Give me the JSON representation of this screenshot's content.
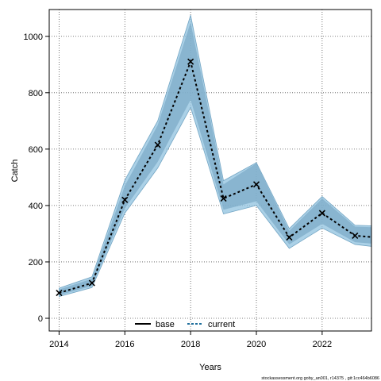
{
  "chart_data": {
    "type": "line",
    "title": "",
    "xlabel": "Years",
    "ylabel": "Catch",
    "xlim": [
      2013.7,
      2023.5
    ],
    "ylim": [
      -45,
      1095
    ],
    "x_ticks": [
      2014,
      2016,
      2018,
      2020,
      2022
    ],
    "y_ticks": [
      0,
      200,
      400,
      600,
      800,
      1000
    ],
    "grid": true,
    "legend_position": "bottom-center",
    "colors": {
      "base": "#000000",
      "current": "#1f6f9c",
      "band_outer": "#8fc2df",
      "band_inner": "#7aa9c6",
      "band_edge": "#74a6c4"
    },
    "series": [
      {
        "name": "base",
        "style": "solid",
        "x": [],
        "y": []
      },
      {
        "name": "current",
        "style": "dashed",
        "x": [
          2014,
          2015,
          2016,
          2017,
          2018,
          2019,
          2020,
          2021,
          2022,
          2023,
          2023.5
        ],
        "y": [
          90,
          125,
          420,
          615,
          910,
          425,
          475,
          287,
          373,
          293,
          288
        ],
        "outer_upper": [
          107,
          147,
          490,
          700,
          1075,
          488,
          552,
          318,
          432,
          330,
          328
        ],
        "outer_lower": [
          77,
          109,
          373,
          533,
          748,
          370,
          400,
          248,
          320,
          262,
          255
        ],
        "inner_upper": [
          102,
          140,
          470,
          685,
          1050,
          475,
          550,
          310,
          425,
          325,
          323
        ],
        "inner_lower": [
          82,
          115,
          390,
          555,
          775,
          385,
          415,
          262,
          335,
          270,
          265
        ]
      }
    ],
    "markers": {
      "x": [
        2014,
        2015,
        2016,
        2017,
        2018,
        2019,
        2020,
        2021,
        2022,
        2023
      ],
      "y": [
        90,
        125,
        420,
        615,
        910,
        425,
        475,
        287,
        373,
        293
      ]
    }
  },
  "legend": {
    "base_label": "base",
    "current_label": "current"
  },
  "footnote": "stockassessment.org goby_an001, r14375 , git:1cc464b6086"
}
